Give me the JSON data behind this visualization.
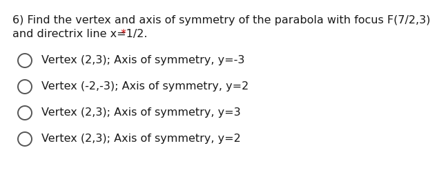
{
  "question_line1": "6) Find the vertex and axis of symmetry of the parabola with focus F(7/2,3)",
  "question_line2": "and directrix line x=1/2.",
  "asterisk": "*",
  "asterisk_color": "#cc0000",
  "options": [
    "Vertex (2,3); Axis of symmetry, y=-3",
    "Vertex (-2,-3); Axis of symmetry, y=2",
    "Vertex (2,3); Axis of symmetry, y=3",
    "Vertex (2,3); Axis of symmetry, y=2"
  ],
  "background_color": "#ffffff",
  "text_color": "#1a1a1a",
  "question_fontsize": 11.5,
  "option_fontsize": 11.5,
  "circle_color": "#555555",
  "circle_linewidth": 1.4
}
